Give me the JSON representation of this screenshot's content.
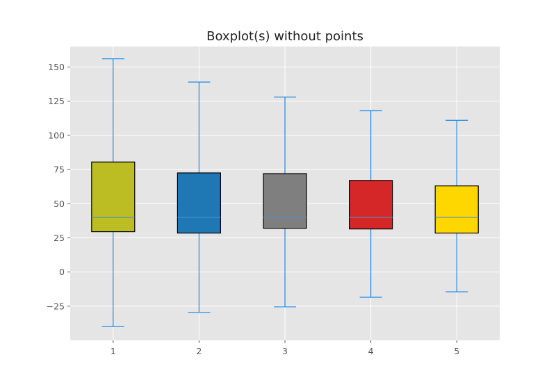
{
  "chart_data": {
    "type": "boxplot",
    "title": "Boxplot(s) without points",
    "xlabel": "",
    "ylabel": "",
    "categories": [
      "1",
      "2",
      "3",
      "4",
      "5"
    ],
    "ylim": [
      -50,
      165
    ],
    "yticks": [
      -25,
      0,
      25,
      50,
      75,
      100,
      125,
      150
    ],
    "ytick_labels": [
      "−25",
      "0",
      "25",
      "50",
      "75",
      "100",
      "125",
      "150"
    ],
    "grid": true,
    "boxes": [
      {
        "whislo": -40,
        "q1": 29.5,
        "med": 40,
        "q3": 80.5,
        "whishi": 156,
        "color": "#bcbd22"
      },
      {
        "whislo": -29.5,
        "q1": 28.5,
        "med": 40,
        "q3": 72.5,
        "whishi": 139,
        "color": "#1f77b4"
      },
      {
        "whislo": -25.5,
        "q1": 32,
        "med": 40,
        "q3": 72,
        "whishi": 128,
        "color": "#7f7f7f"
      },
      {
        "whislo": -18.5,
        "q1": 31.5,
        "med": 40,
        "q3": 67,
        "whishi": 118,
        "color": "#d62728"
      },
      {
        "whislo": -14.5,
        "q1": 28.5,
        "med": 40,
        "q3": 63,
        "whishi": 111,
        "color": "#ffd700"
      }
    ],
    "whisker_color": "#1e88e5",
    "median_color": "#4a90c8",
    "box_edge_color": "#000000",
    "background_color": "#e5e5e5",
    "grid_color": "#ffffff"
  }
}
